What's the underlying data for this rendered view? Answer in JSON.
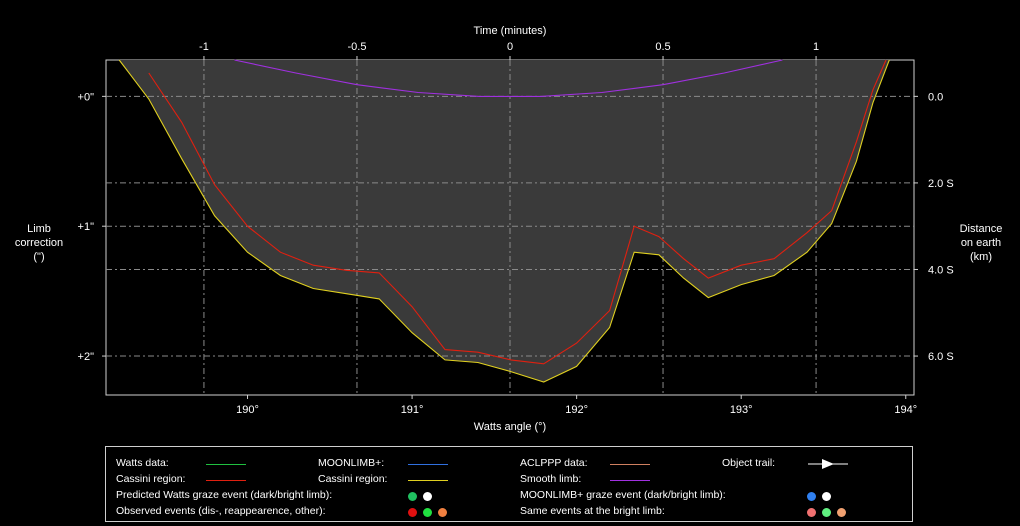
{
  "chart_data": {
    "type": "line",
    "x_top_label": "Time (minutes)",
    "x_top_ticks": [
      "-1",
      "-0.5",
      "0",
      "0.5",
      "1"
    ],
    "x_top_values": [
      -1,
      -0.5,
      0,
      0.5,
      1
    ],
    "x_top_range": [
      -1.32,
      1.32
    ],
    "x_label": "Watts angle (°)",
    "x_ticks": [
      "190°",
      "191°",
      "192°",
      "193°",
      "194°"
    ],
    "x_tick_values": [
      190,
      191,
      192,
      193,
      194
    ],
    "x_range": [
      189.14,
      194.05
    ],
    "y_left_label": [
      "Limb",
      "correction",
      "(\")"
    ],
    "y_left_ticks": [
      "+0\"",
      "+1\"",
      "+2\""
    ],
    "y_left_values": [
      0,
      1,
      2
    ],
    "y_range": [
      -0.28,
      2.3
    ],
    "y_right_label": [
      "Distance",
      "on earth",
      "(km)"
    ],
    "y_right_ticks": [
      "0.0",
      "2.0 S",
      "4.0 S",
      "6.0 S"
    ],
    "y_right_values": [
      0.0,
      2.0,
      4.0,
      6.0
    ],
    "grid": true,
    "colors": {
      "limb_fill": "#3a3a3a",
      "edge_yellow": "#e0d020",
      "cassini_red": "#e02010",
      "smooth_violet": "#a030e0",
      "grid": "#8a8a8a"
    },
    "series": [
      {
        "name": "Cassini region",
        "color": "#e0d020",
        "x": [
          189.22,
          189.4,
          189.6,
          189.8,
          190.0,
          190.2,
          190.4,
          190.6,
          190.8,
          191.0,
          191.2,
          191.4,
          191.6,
          191.8,
          192.0,
          192.2,
          192.35,
          192.5,
          192.65,
          192.8,
          193.0,
          193.2,
          193.4,
          193.55,
          193.7,
          193.8,
          193.9
        ],
        "y": [
          -0.28,
          0.02,
          0.48,
          0.92,
          1.2,
          1.38,
          1.48,
          1.52,
          1.56,
          1.82,
          2.03,
          2.05,
          2.12,
          2.2,
          2.08,
          1.78,
          1.2,
          1.22,
          1.4,
          1.55,
          1.45,
          1.38,
          1.2,
          0.98,
          0.5,
          0.05,
          -0.28
        ]
      },
      {
        "name": "Cassini region",
        "color": "#e02010",
        "x": [
          189.4,
          189.6,
          189.8,
          190.0,
          190.2,
          190.4,
          190.6,
          190.8,
          191.0,
          191.2,
          191.4,
          191.6,
          191.8,
          192.0,
          192.2,
          192.35,
          192.5,
          192.65,
          192.8,
          193.0,
          193.2,
          193.4,
          193.55,
          193.7,
          193.8,
          193.88
        ],
        "y": [
          -0.18,
          0.2,
          0.68,
          1.0,
          1.2,
          1.3,
          1.34,
          1.36,
          1.62,
          1.95,
          1.97,
          2.03,
          2.06,
          1.9,
          1.65,
          1.0,
          1.08,
          1.25,
          1.4,
          1.3,
          1.25,
          1.05,
          0.88,
          0.35,
          -0.05,
          -0.28
        ]
      },
      {
        "name": "Smooth limb",
        "color": "#a030e0",
        "x_minutes": [
          -0.9,
          -0.7,
          -0.5,
          -0.3,
          -0.1,
          0.0,
          0.1,
          0.3,
          0.5,
          0.7,
          0.89
        ],
        "y": [
          -0.28,
          -0.18,
          -0.09,
          -0.03,
          0.0,
          0.0,
          0.0,
          -0.03,
          -0.09,
          -0.18,
          -0.28
        ]
      }
    ]
  },
  "legend": {
    "row1": {
      "watts_data": "Watts data:",
      "moonlimb": "MOONLIMB+:",
      "aclppp": "ACLPPP data:",
      "object_trail": "Object trail:"
    },
    "row2": {
      "cassini1": "Cassini region:",
      "cassini2": "Cassini region:",
      "smooth_limb": "Smooth limb:"
    },
    "row3": {
      "predicted_watts": "Predicted Watts graze event (dark/bright limb):",
      "moonlimb_graze": "MOONLIMB+ graze event (dark/bright limb):"
    },
    "row4": {
      "observed": "Observed events (dis-, reappearence, other):",
      "same_bright": "Same events at the bright limb:"
    },
    "swatch_colors": {
      "watts": "#20c040",
      "moonlimb": "#3070e0",
      "aclppp": "#d08060",
      "cassini1": "#e02010",
      "cassini2": "#e0d020",
      "smooth": "#a030e0"
    },
    "dot_colors": {
      "predicted": [
        "#20c060",
        "#ffffff"
      ],
      "moonlimb": [
        "#3080f0",
        "#ffffff"
      ],
      "observed": [
        "#e01010",
        "#20e040",
        "#f08040"
      ],
      "same_bright": [
        "#f07070",
        "#60f080",
        "#f0a070"
      ]
    }
  }
}
